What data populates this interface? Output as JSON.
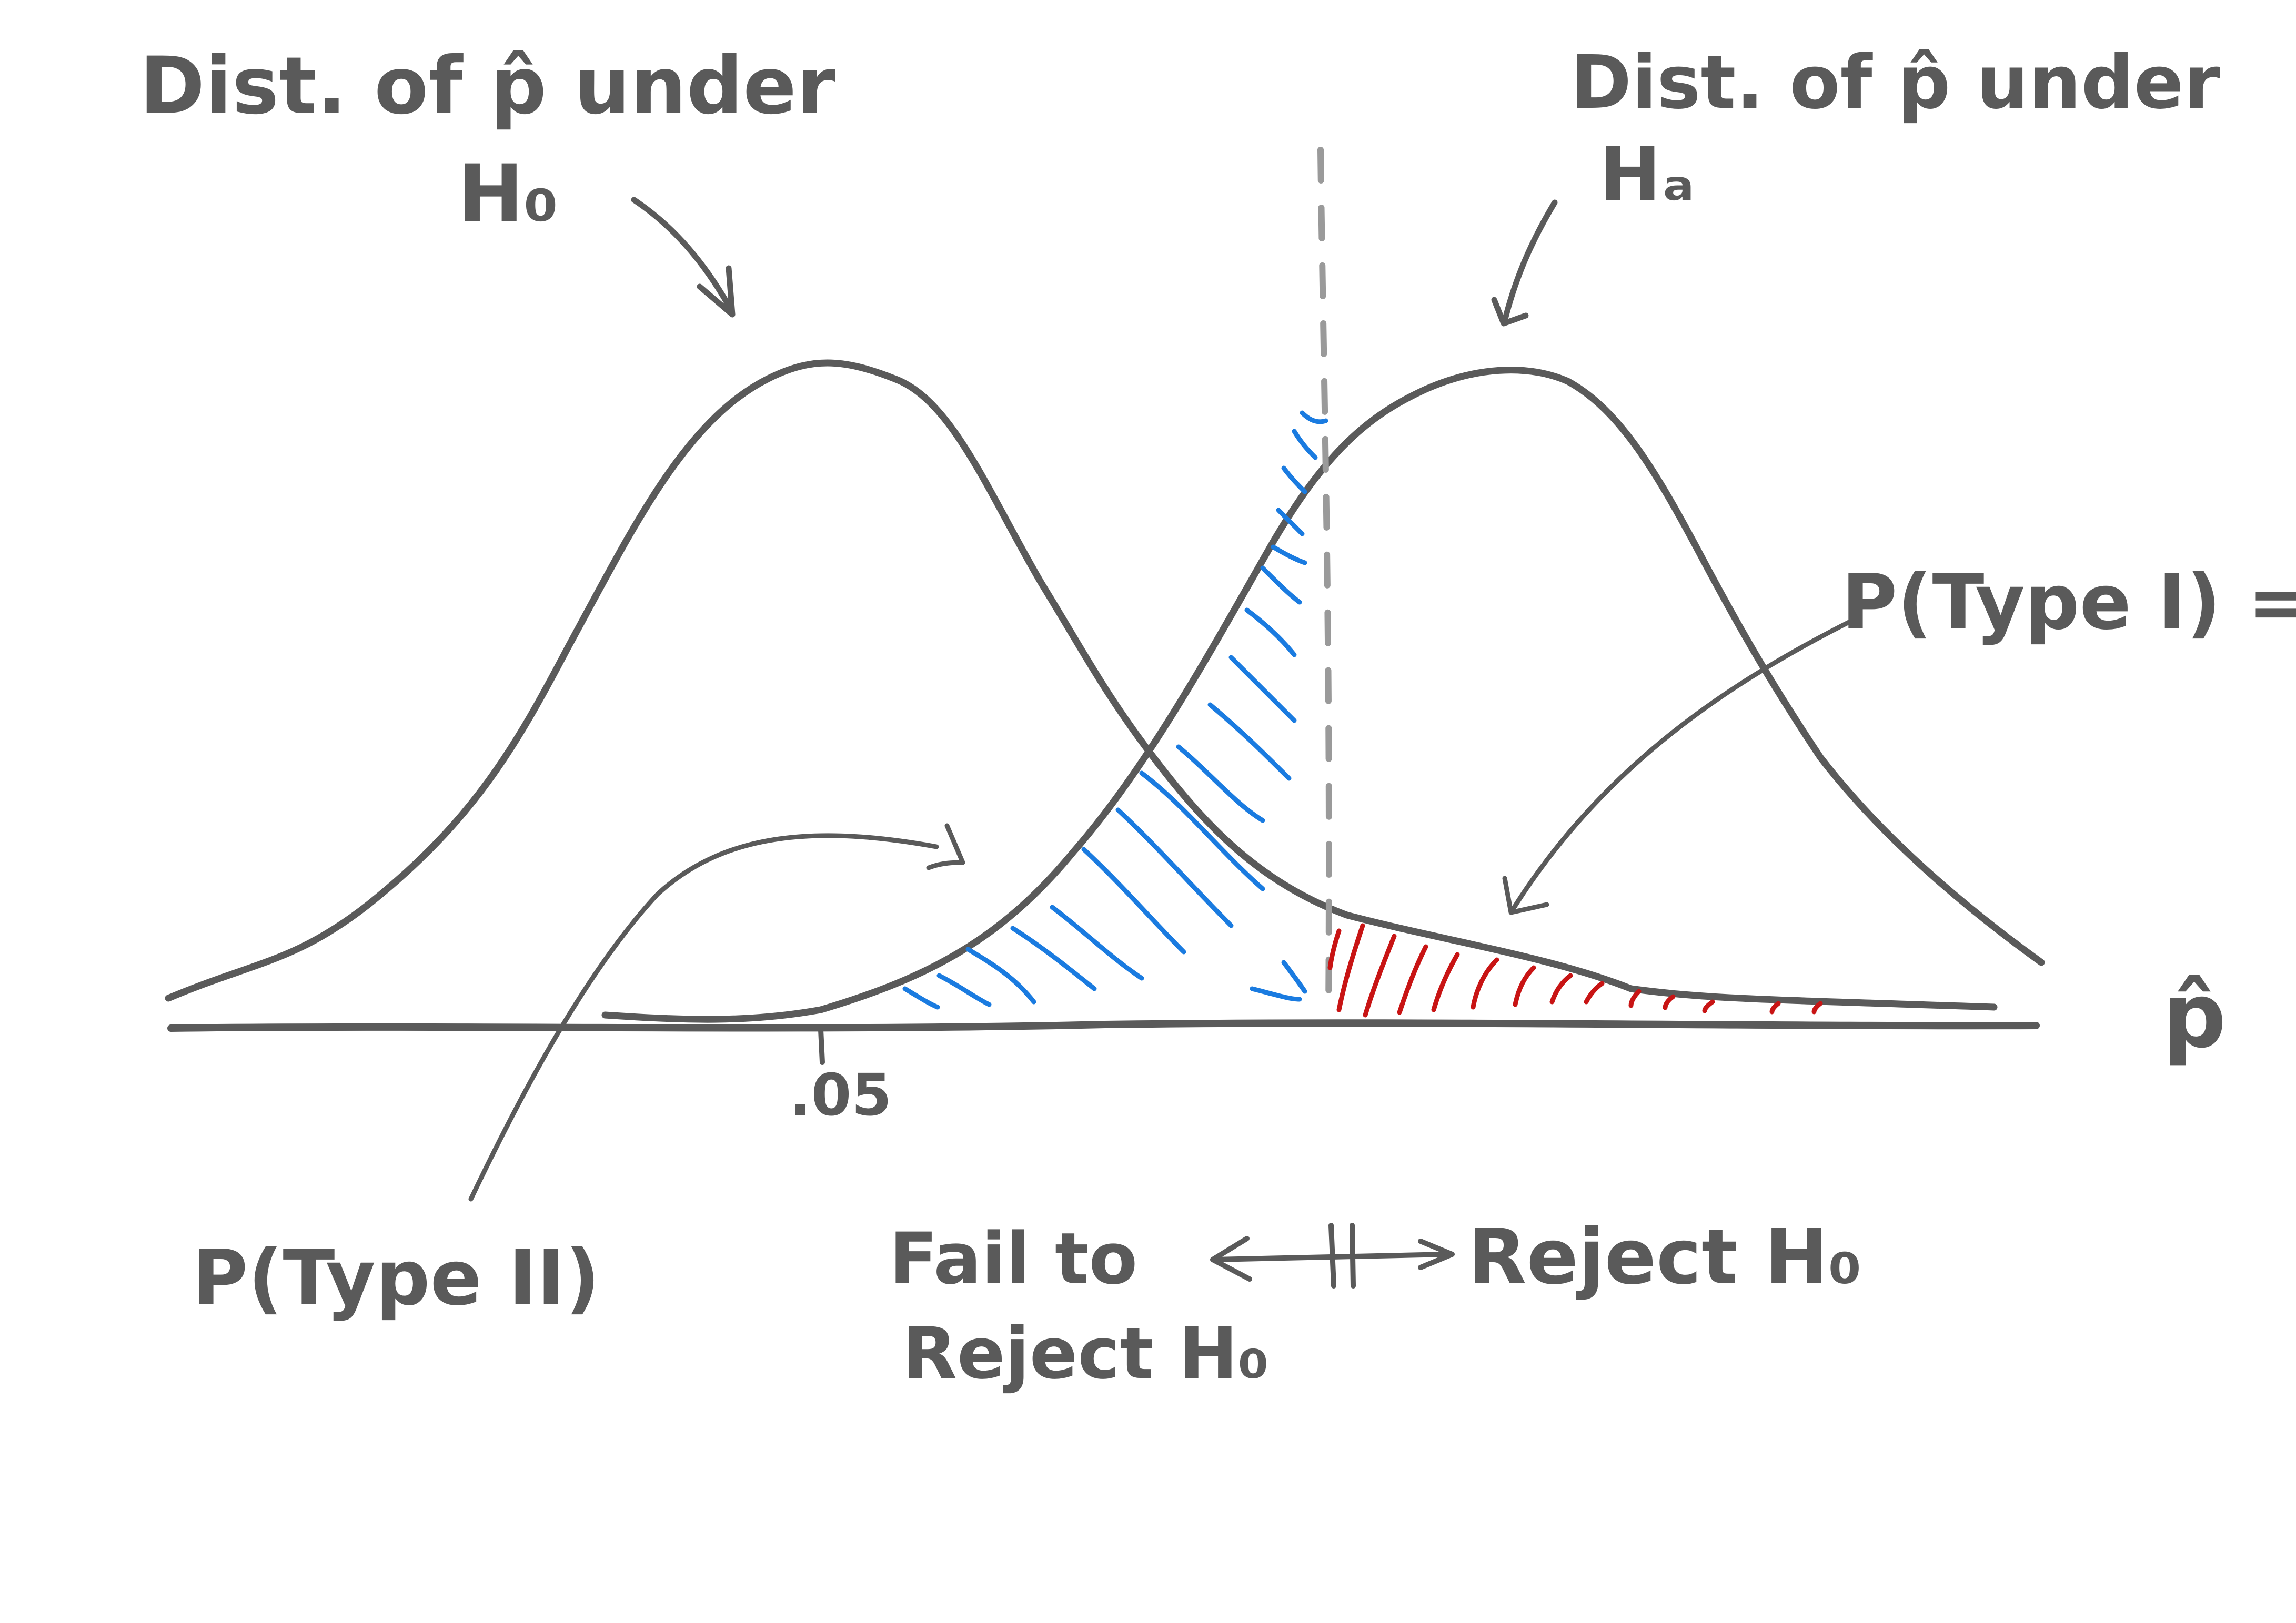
{
  "labels": {
    "null_dist_line1": "Dist. of p̂ under",
    "null_dist_line2": "H₀",
    "alt_dist_line1": "Dist. of p̂ under",
    "alt_dist_line2": "Hₐ",
    "type_one": "P(Type I) = α",
    "type_two": "P(Type II)",
    "fail_line1": "Fail to",
    "fail_line2": "Reject H₀",
    "reject": "Reject H₀",
    "axis_tick": ".05",
    "axis_var": "p̂"
  },
  "colors": {
    "ink": "#5a5a5a",
    "type_two_hatch": "#1a7be0",
    "type_one_hatch": "#c81414",
    "cutoff_line": "#9a9a9a"
  }
}
